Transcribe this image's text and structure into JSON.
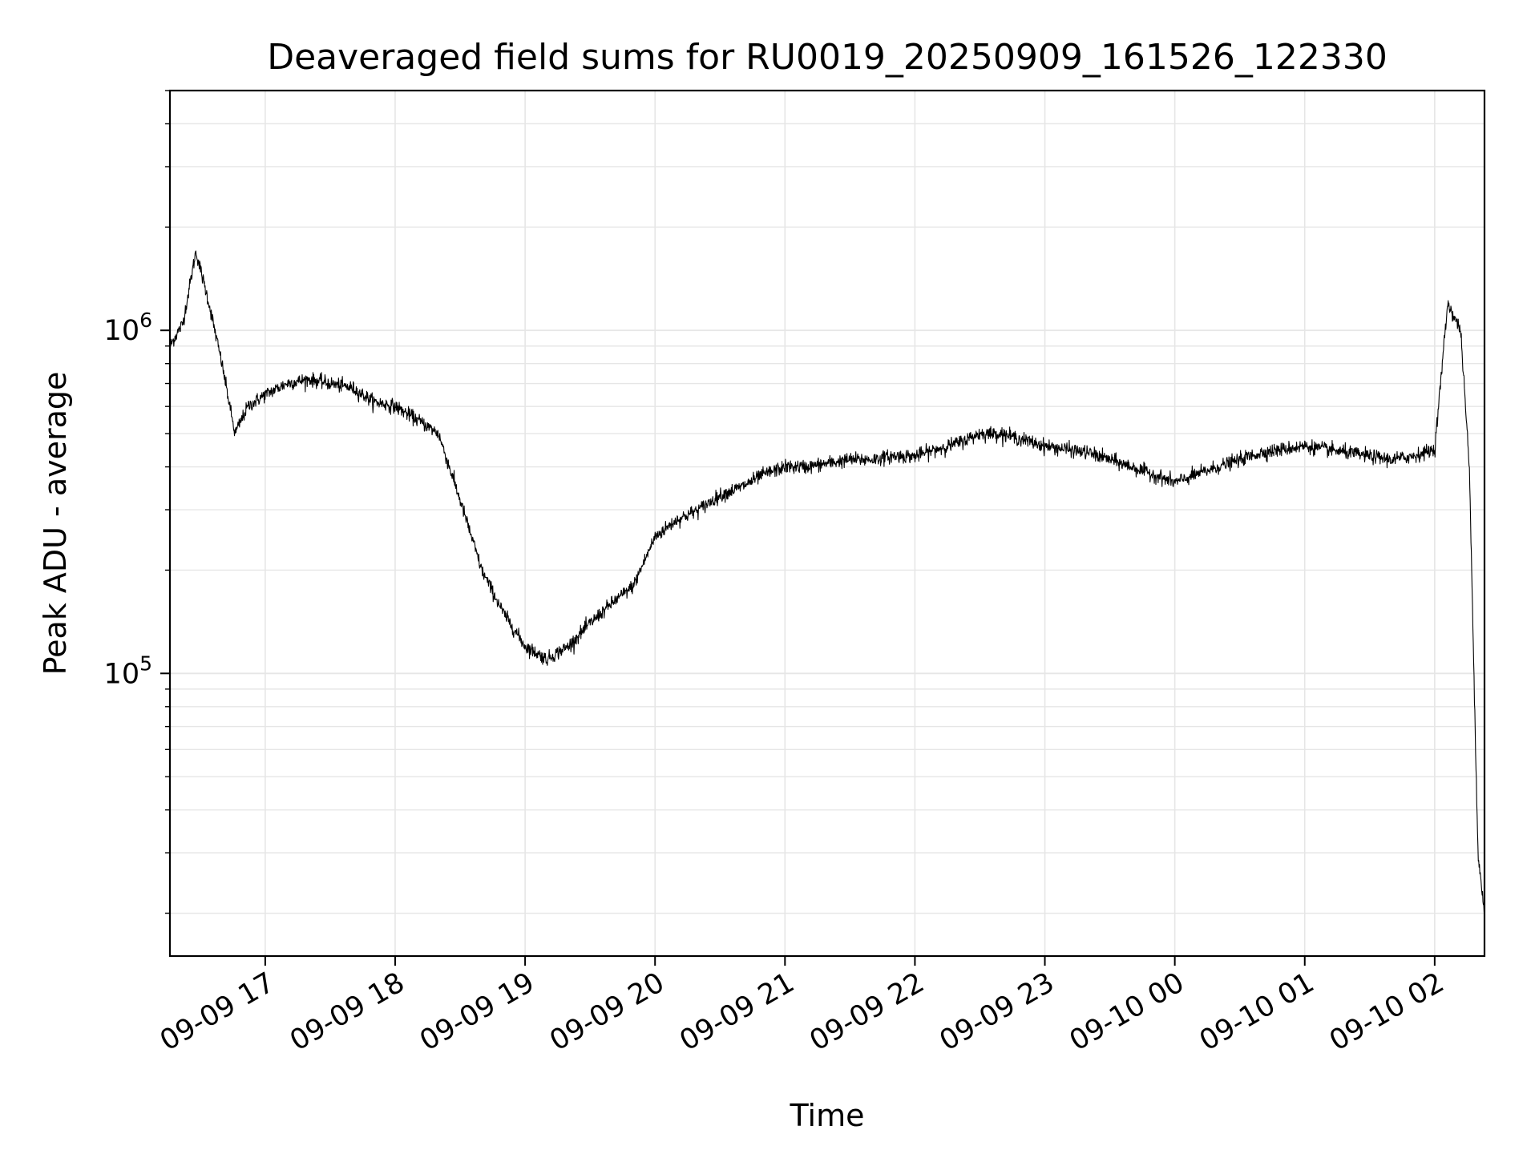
{
  "chart_data": {
    "type": "line",
    "title": "Deaveraged field sums for RU0019_20250909_161526_122330",
    "xlabel": "Time",
    "ylabel": "Peak ADU - average",
    "yscale": "log",
    "ylim": [
      15000,
      5000000
    ],
    "xlim": [
      "09-09 16:16",
      "09-10 02:23"
    ],
    "x_tick_labels": [
      "09-09 17",
      "09-09 18",
      "09-09 19",
      "09-09 20",
      "09-09 21",
      "09-09 22",
      "09-09 23",
      "09-10 00",
      "09-10 01",
      "09-10 02"
    ],
    "y_tick_labels": [
      {
        "base": "10",
        "exp": "5"
      },
      {
        "base": "10",
        "exp": "6"
      }
    ],
    "grid": true,
    "color": "#000000",
    "series": [
      {
        "x": [
          "09-09 16:16",
          "09-09 16:22",
          "09-09 16:28",
          "09-09 16:34",
          "09-09 16:40",
          "09-09 16:46",
          "09-09 16:52",
          "09-09 17:00",
          "09-09 17:10",
          "09-09 17:20",
          "09-09 17:30",
          "09-09 17:40",
          "09-09 17:50",
          "09-09 18:00",
          "09-09 18:10",
          "09-09 18:20",
          "09-09 18:30",
          "09-09 18:40",
          "09-09 18:50",
          "09-09 19:00",
          "09-09 19:10",
          "09-09 19:20",
          "09-09 19:30",
          "09-09 19:40",
          "09-09 19:50",
          "09-09 20:00",
          "09-09 20:10",
          "09-09 20:20",
          "09-09 20:30",
          "09-09 20:40",
          "09-09 20:50",
          "09-09 21:00",
          "09-09 21:10",
          "09-09 21:20",
          "09-09 21:30",
          "09-09 21:40",
          "09-09 21:50",
          "09-09 22:00",
          "09-09 22:10",
          "09-09 22:20",
          "09-09 22:30",
          "09-09 22:40",
          "09-09 22:50",
          "09-09 23:00",
          "09-09 23:10",
          "09-09 23:20",
          "09-09 23:30",
          "09-09 23:40",
          "09-09 23:50",
          "09-10 00:00",
          "09-10 00:10",
          "09-10 00:20",
          "09-10 00:30",
          "09-10 00:40",
          "09-10 00:50",
          "09-10 01:00",
          "09-10 01:10",
          "09-10 01:20",
          "09-10 01:30",
          "09-10 01:40",
          "09-10 01:50",
          "09-10 02:00",
          "09-10 02:06",
          "09-10 02:12",
          "09-10 02:16",
          "09-10 02:20",
          "09-10 02:23"
        ],
        "y": [
          900000,
          1050000,
          1700000,
          1200000,
          800000,
          500000,
          600000,
          650000,
          700000,
          720000,
          700000,
          680000,
          620000,
          600000,
          550000,
          500000,
          320000,
          200000,
          150000,
          120000,
          110000,
          120000,
          140000,
          160000,
          180000,
          250000,
          280000,
          300000,
          330000,
          350000,
          380000,
          400000,
          400000,
          410000,
          420000,
          420000,
          430000,
          430000,
          450000,
          470000,
          500000,
          500000,
          480000,
          460000,
          450000,
          440000,
          420000,
          400000,
          380000,
          360000,
          380000,
          400000,
          420000,
          440000,
          450000,
          460000,
          450000,
          440000,
          430000,
          420000,
          430000,
          450000,
          1200000,
          1000000,
          400000,
          30000,
          20000
        ]
      }
    ]
  }
}
